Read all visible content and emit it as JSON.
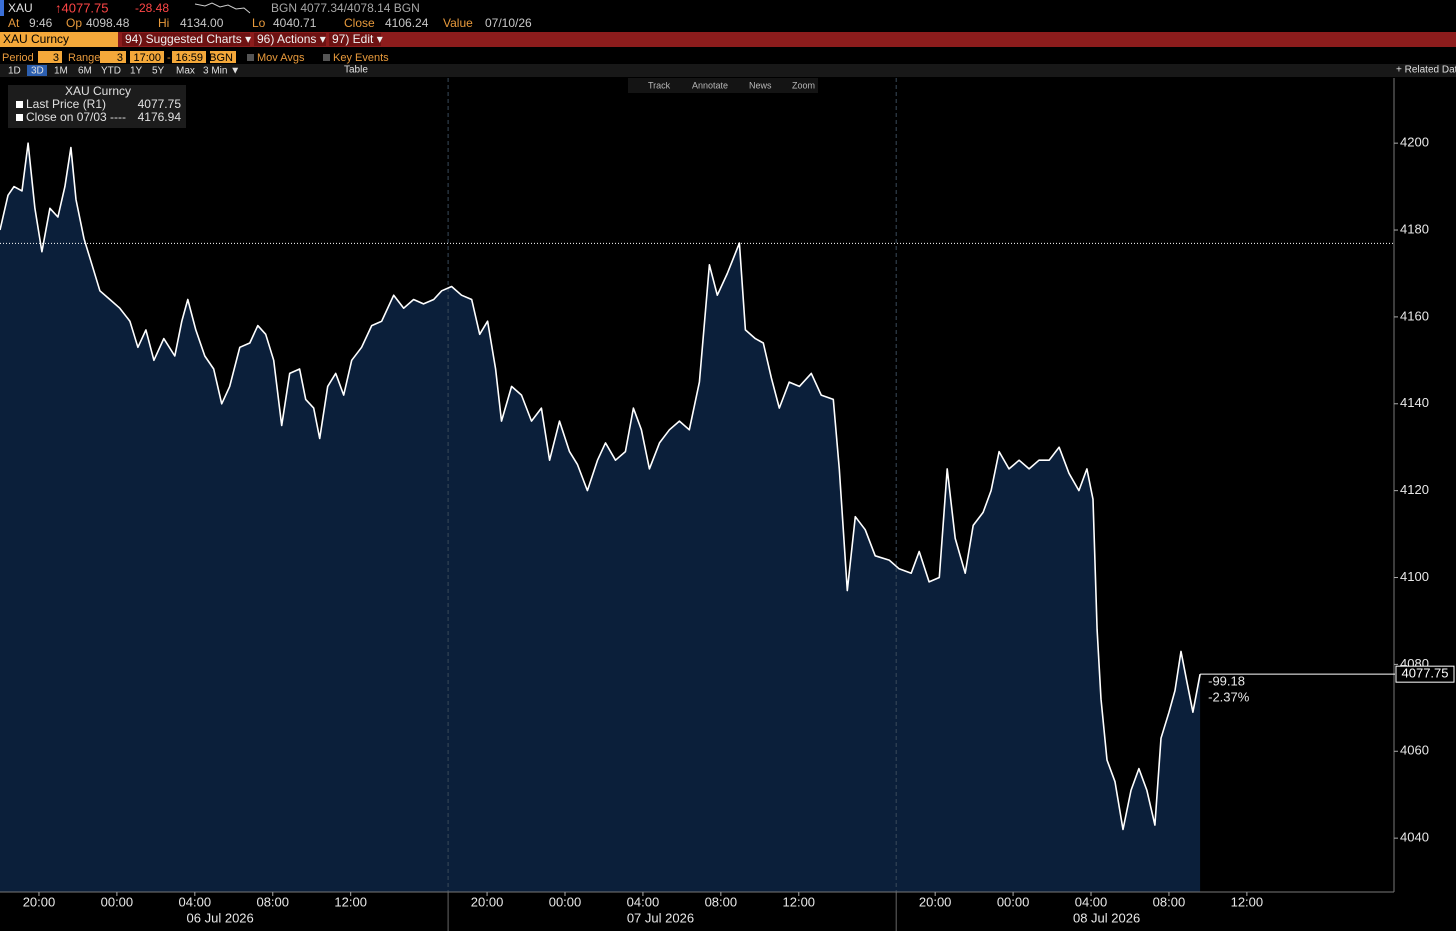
{
  "header": {
    "ticker": "XAU",
    "last": "↑4077.75",
    "change": "-28.48",
    "bid_ask": "BGN 4077.34/4078.14 BGN",
    "row2": [
      {
        "label": "At",
        "value": "9:46"
      },
      {
        "label": "Op",
        "value": "4098.48"
      },
      {
        "label": "Hi",
        "value": "4134.00"
      },
      {
        "label": "Lo",
        "value": "4040.71"
      },
      {
        "label": "Close",
        "value": "4106.24"
      },
      {
        "label": "Value",
        "value": "07/10/26"
      }
    ]
  },
  "menu": {
    "security": "XAU Curncy",
    "items": [
      "94) Suggested Charts ▾",
      "96) Actions ▾",
      "97) Edit ▾"
    ]
  },
  "settings": {
    "period_label": "Period",
    "period": "3",
    "range_label": "Range",
    "range": "3",
    "start": "17:00",
    "dash": "-",
    "end": "16:59",
    "source": "BGN",
    "mov_avgs": "Mov Avgs",
    "key_events": "Key Events"
  },
  "toolbar": {
    "periods": [
      "1D",
      "3D",
      "1M",
      "6M",
      "YTD",
      "1Y",
      "5Y",
      "Max",
      "3 Min ▼"
    ],
    "table": "Table",
    "related": "+ Related Data"
  },
  "chart_tools": [
    "Track",
    "Annotate",
    "News",
    "Zoom"
  ],
  "chart_data": {
    "type": "area",
    "legend_title": "XAU Curncy",
    "series": [
      {
        "name": "Last Price (R1)",
        "color": "#ffffff",
        "fill": "#0b1f3a",
        "x": [
          -6,
          -5.59,
          -5.28,
          -4.87,
          -4.56,
          -4.21,
          -3.85,
          -3.44,
          -3.03,
          -2.67,
          -2.36,
          -2.1,
          -1.69,
          -1.28,
          -0.87,
          -0.36,
          0.15,
          0.67,
          1.08,
          1.49,
          1.9,
          2.41,
          2.97,
          3.33,
          3.64,
          4.05,
          4.51,
          4.97,
          5.38,
          5.79,
          6.31,
          6.82,
          7.23,
          7.64,
          8.05,
          8.46,
          8.87,
          9.38,
          9.69,
          10.1,
          10.41,
          10.82,
          11.23,
          11.64,
          12.05,
          12.56,
          13.08,
          13.59,
          14.21,
          14.72,
          15.23,
          15.74,
          16.26,
          16.67,
          18.18,
          18.69,
          19.21,
          19.62,
          20.03,
          20.44,
          20.74,
          21.26,
          21.77,
          22.28,
          22.79,
          23.21,
          23.72,
          24.23,
          24.64,
          25.15,
          25.67,
          26.08,
          26.59,
          27.1,
          27.51,
          27.92,
          28.33,
          28.85,
          29.36,
          29.87,
          30.38,
          30.9,
          31.41,
          31.82,
          32.33,
          32.95,
          33.26,
          33.77,
          34.18,
          34.59,
          35,
          35.51,
          36.03,
          36.64,
          37.15,
          37.77,
          38.08,
          38.49,
          38.9,
          39.41,
          39.92,
          40.64,
          42.15,
          42.77,
          43.18,
          43.69,
          44.21,
          44.62,
          45.03,
          45.54,
          45.95,
          46.46,
          46.87,
          47.28,
          47.79,
          48.31,
          48.82,
          49.33,
          49.85,
          50.36,
          50.87,
          51.38,
          51.79,
          52.1,
          52.31,
          52.51,
          52.82,
          53.23,
          53.64,
          54.05,
          54.46,
          54.87,
          55.28,
          55.59,
          56,
          56.31,
          56.62,
          56.92,
          57.23,
          57.6
        ],
        "values": [
          4180,
          4188,
          4190,
          4189,
          4200,
          4185,
          4175,
          4185,
          4183,
          4190,
          4199,
          4187,
          4178,
          4172,
          4166,
          4164,
          4162,
          4159,
          4153,
          4157,
          4150,
          4155,
          4151,
          4159,
          4164,
          4157,
          4151,
          4148,
          4140,
          4144,
          4153,
          4154,
          4158,
          4156,
          4150,
          4135,
          4147,
          4148,
          4141,
          4139,
          4132,
          4144,
          4147,
          4142,
          4150,
          4153,
          4158,
          4159,
          4165,
          4162,
          4164,
          4163,
          4164,
          4166,
          4167,
          4165,
          4164,
          4156,
          4159,
          4148,
          4136,
          4144,
          4142,
          4136,
          4139,
          4127,
          4136,
          4129,
          4126,
          4120,
          4127,
          4131,
          4127,
          4129,
          4139,
          4134,
          4125,
          4131,
          4134,
          4136,
          4134,
          4145,
          4172,
          4165,
          4170,
          4177,
          4157,
          4155,
          4154,
          4146,
          4139,
          4145,
          4144,
          4147,
          4142,
          4141,
          4125,
          4097,
          4114,
          4111,
          4105,
          4104,
          4102,
          4101,
          4106,
          4099,
          4100,
          4125,
          4109,
          4101,
          4112,
          4115,
          4120,
          4129,
          4125,
          4127,
          4125,
          4127,
          4127,
          4130,
          4124,
          4120,
          4125,
          4118,
          4088,
          4072,
          4058,
          4053,
          4042,
          4051,
          4056,
          4051,
          4043,
          4063,
          4069,
          4074,
          4083,
          4076,
          4069,
          4077.75
        ]
      }
    ],
    "reference": {
      "name": "Close on 07/03 ----",
      "value": 4176.94,
      "color": "#ffffff"
    },
    "annotations": [
      "-99.18",
      "-2.37%"
    ],
    "xlim": [
      -6,
      67.5
    ],
    "xticks": [
      {
        "value": -4,
        "label": "20:00"
      },
      {
        "value": 0,
        "label": "00:00"
      },
      {
        "value": 4,
        "label": "04:00"
      },
      {
        "value": 8,
        "label": "08:00"
      },
      {
        "value": 12,
        "label": "12:00"
      },
      {
        "value": 20,
        "label": "20:00"
      },
      {
        "value": 24,
        "label": "00:00"
      },
      {
        "value": 28,
        "label": "04:00"
      },
      {
        "value": 32,
        "label": "08:00"
      },
      {
        "value": 36,
        "label": "12:00"
      },
      {
        "value": 44,
        "label": "20:00"
      },
      {
        "value": 48,
        "label": "00:00"
      },
      {
        "value": 52,
        "label": "04:00"
      },
      {
        "value": 56,
        "label": "08:00"
      },
      {
        "value": 60,
        "label": "12:00"
      }
    ],
    "date_labels": [
      {
        "value": 5.3,
        "label": "06 Jul 2026"
      },
      {
        "value": 28.9,
        "label": "07 Jul 2026"
      },
      {
        "value": 52.8,
        "label": "08 Jul 2026"
      }
    ],
    "ylim": [
      4027.6,
      4215
    ],
    "yticks": [
      4040,
      4060,
      4080,
      4100,
      4120,
      4140,
      4160,
      4180,
      4200
    ],
    "grid": false
  }
}
